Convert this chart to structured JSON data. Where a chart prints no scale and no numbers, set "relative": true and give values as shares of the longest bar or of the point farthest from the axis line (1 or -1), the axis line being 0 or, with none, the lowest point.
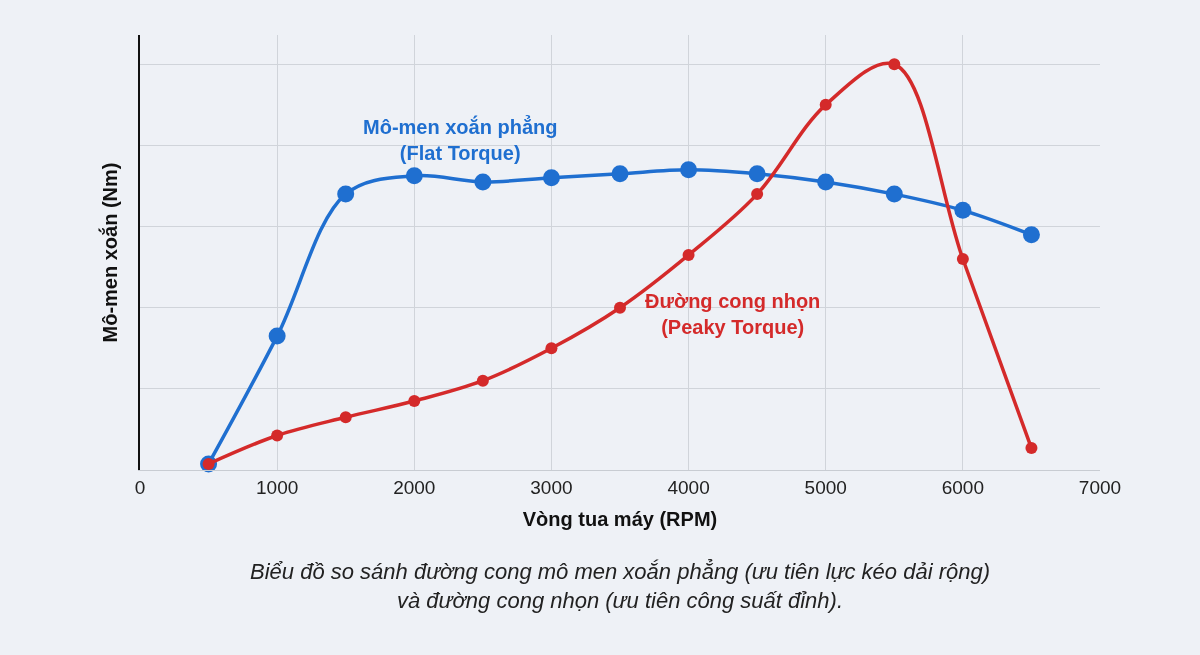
{
  "chart_data": {
    "type": "line",
    "relative": true,
    "xlabel": "Vòng tua máy (RPM)",
    "ylabel": "Mô-men xoắn (Nm)",
    "x": [
      500,
      1000,
      1500,
      2000,
      2500,
      3000,
      3500,
      4000,
      4500,
      5000,
      5500,
      6000,
      6500
    ],
    "xlim": [
      0,
      7000
    ],
    "xticks": [
      0,
      1000,
      2000,
      3000,
      4000,
      5000,
      6000,
      7000
    ],
    "series": [
      {
        "name": "Mô-men xoắn phẳng\n(Flat Torque)",
        "color": "#1f6fd0",
        "values": [
          0.015,
          0.33,
          0.68,
          0.725,
          0.71,
          0.72,
          0.73,
          0.74,
          0.73,
          0.71,
          0.68,
          0.64,
          0.58
        ]
      },
      {
        "name": "Đường cong nhọn\n(Peaky Torque)",
        "color": "#d42a2a",
        "values": [
          0.015,
          0.085,
          0.13,
          0.17,
          0.22,
          0.3,
          0.4,
          0.53,
          0.68,
          0.9,
          1,
          0.52,
          0.054
        ]
      }
    ],
    "marker": "circle",
    "line_style": "solid",
    "grid": true,
    "legend": false,
    "annotations": [
      "Biểu đồ so sánh đường cong mô men xoắn phẳng (ưu tiên lực kéo dải rộng)\nvà đường cong nhọn (ưu tiên công suất đỉnh)."
    ]
  }
}
